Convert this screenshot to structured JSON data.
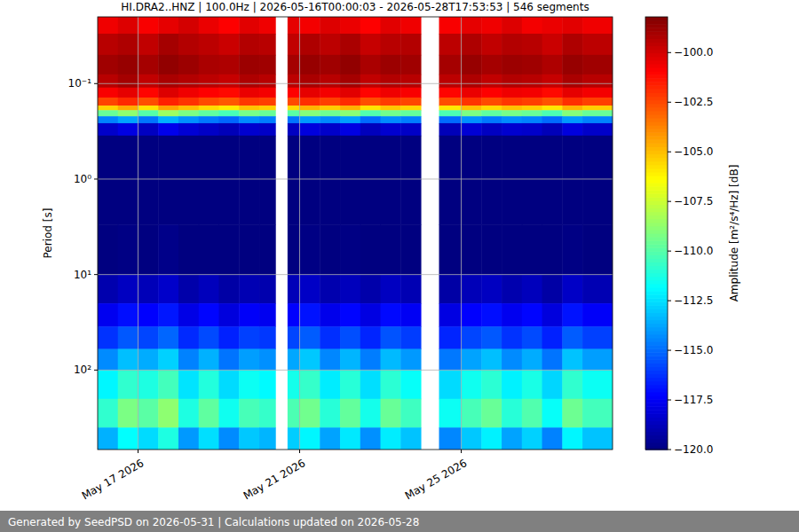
{
  "chart_data": {
    "type": "heatmap",
    "title": "HI.DRA2..HNZ | 100.0Hz | 2026-05-16T00:00:03 - 2026-05-28T17:53:53 | 546 segments",
    "y_label": "Period [s]",
    "colorbar_label": "Amplitude [m²/s⁴/Hz] [dB]",
    "footer": "Generated by SeedPSD on 2026-05-31 | Calculations updated on 2026-05-28",
    "log": "y",
    "grid": true,
    "xlim": [
      "2026-05-16T00:00:03",
      "2026-05-28T17:53:53"
    ],
    "xticks": [
      {
        "value": "2026-05-17T00:00:00",
        "label": "May 17 2026"
      },
      {
        "value": "2026-05-21T00:00:00",
        "label": "May 21 2026"
      },
      {
        "value": "2026-05-25T00:00:00",
        "label": "May 25 2026"
      }
    ],
    "ylim": [
      0.02,
      680
    ],
    "yticks": [
      {
        "value": 0.1,
        "label": "10⁻¹"
      },
      {
        "value": 1,
        "label": "10⁰"
      },
      {
        "value": 10,
        "label": "10¹"
      },
      {
        "value": 100,
        "label": "10²"
      }
    ],
    "x_edges": [
      "2026-05-16T00:00:03",
      "2026-05-16T12:00:00",
      "2026-05-17T00:00:00",
      "2026-05-17T12:00:00",
      "2026-05-18T00:00:00",
      "2026-05-18T12:00:00",
      "2026-05-19T00:00:00",
      "2026-05-19T12:00:00",
      "2026-05-20T00:00:00",
      "2026-05-20T09:36:00",
      "2026-05-20T16:48:00",
      "2026-05-21T00:00:00",
      "2026-05-21T12:00:00",
      "2026-05-22T00:00:00",
      "2026-05-22T12:00:00",
      "2026-05-23T00:00:00",
      "2026-05-23T12:00:00",
      "2026-05-24T00:00:00",
      "2026-05-24T10:48:00",
      "2026-05-25T00:00:00",
      "2026-05-25T12:00:00",
      "2026-05-26T00:00:00",
      "2026-05-26T12:00:00",
      "2026-05-27T00:00:00",
      "2026-05-27T12:00:00",
      "2026-05-28T00:00:00",
      "2026-05-28T17:53:53"
    ],
    "y_edges": [
      0.02,
      0.03,
      0.05,
      0.08,
      0.11,
      0.14,
      0.17,
      0.19,
      0.22,
      0.26,
      0.35,
      1,
      3,
      10,
      20,
      35,
      60,
      100,
      200,
      400,
      680
    ],
    "values": [
      [
        -100.6,
        -100.2,
        -100.8,
        -100.4,
        -100.0,
        -100.5,
        -100.9,
        -100.3,
        -100.6,
        null,
        -100.4,
        -100.7,
        -100.2,
        -100.5,
        -100.9,
        -100.3,
        -100.6,
        null,
        -100.8,
        -100.4,
        -100.6,
        -100.2,
        -100.7,
        -100.5,
        -100.3,
        -100.6
      ],
      [
        -99.4,
        -99.2,
        -99.6,
        -99.0,
        -99.3,
        -99.5,
        -99.8,
        -99.3,
        -99.4,
        null,
        -99.6,
        -99.2,
        -99.5,
        -99.1,
        -99.7,
        -99.4,
        -99.3,
        null,
        -99.5,
        -99.2,
        -99.6,
        -99.3,
        -99.4,
        -99.8,
        -99.2,
        -99.5
      ],
      [
        -98.9,
        -98.7,
        -99.0,
        -98.6,
        -98.8,
        -99.1,
        -99.2,
        -98.8,
        -98.9,
        null,
        -99.0,
        -98.7,
        -98.9,
        -98.6,
        -99.1,
        -98.8,
        -98.9,
        null,
        -99.0,
        -98.7,
        -99.0,
        -98.8,
        -98.9,
        -99.2,
        -98.7,
        -98.9
      ],
      [
        -99.4,
        -99.0,
        -99.6,
        -99.1,
        -99.3,
        -99.5,
        -99.7,
        -99.2,
        -99.4,
        null,
        -99.5,
        -99.1,
        -99.4,
        -99.0,
        -99.6,
        -99.3,
        -99.4,
        null,
        -99.5,
        -99.2,
        -99.6,
        -99.3,
        -99.4,
        -99.7,
        -99.1,
        -99.4
      ],
      [
        -100.8,
        -100.4,
        -101.0,
        -100.2,
        -100.6,
        -100.9,
        -101.1,
        -100.5,
        -100.7,
        null,
        -100.9,
        -100.4,
        -100.7,
        -100.3,
        -101.0,
        -100.6,
        -100.8,
        null,
        -101.0,
        -100.5,
        -100.9,
        -100.6,
        -100.7,
        -101.1,
        -100.4,
        -100.7
      ],
      [
        -102.4,
        -101.8,
        -102.6,
        -101.6,
        -102.0,
        -102.5,
        -102.8,
        -102.1,
        -102.3,
        null,
        -102.5,
        -101.9,
        -102.3,
        -101.8,
        -102.6,
        -102.2,
        -102.4,
        null,
        -102.6,
        -102.0,
        -102.5,
        -102.1,
        -102.3,
        -102.7,
        -101.9,
        -102.3
      ],
      [
        -105.5,
        -104.6,
        -105.8,
        -104.4,
        -105.0,
        -105.6,
        -106.0,
        -105.1,
        -105.4,
        null,
        -105.6,
        -104.8,
        -105.3,
        -104.7,
        -105.8,
        -105.2,
        -105.5,
        null,
        -105.9,
        -105.0,
        -105.6,
        -105.1,
        -105.4,
        -105.9,
        -104.8,
        -105.4
      ],
      [
        -109.6,
        -108.8,
        -110.0,
        -108.5,
        -109.2,
        -109.8,
        -110.3,
        -109.3,
        -109.6,
        null,
        -109.9,
        -109.0,
        -109.5,
        -108.9,
        -110.1,
        -109.4,
        -109.7,
        null,
        -110.2,
        -109.2,
        -109.8,
        -109.3,
        -109.6,
        -110.2,
        -109.0,
        -109.6
      ],
      [
        -114.5,
        -113.8,
        -114.8,
        -113.5,
        -114.2,
        -114.7,
        -115.1,
        -114.3,
        -114.6,
        null,
        -114.8,
        -114.0,
        -114.4,
        -113.9,
        -115.0,
        -114.3,
        -114.6,
        null,
        -115.0,
        -114.2,
        -114.7,
        -114.3,
        -114.5,
        -115.0,
        -114.0,
        -114.5
      ],
      [
        -118.4,
        -117.9,
        -118.6,
        -117.7,
        -118.2,
        -118.5,
        -118.8,
        -118.3,
        -118.5,
        null,
        -118.6,
        -118.0,
        -118.4,
        -117.9,
        -118.7,
        -118.3,
        -118.5,
        null,
        -118.8,
        -118.2,
        -118.6,
        -118.3,
        -118.4,
        -118.8,
        -118.0,
        -118.4
      ],
      [
        -120.4,
        -120.1,
        -120.5,
        -120.0,
        -120.3,
        -120.4,
        -120.6,
        -120.2,
        -120.4,
        null,
        -120.5,
        -120.2,
        -120.3,
        -120.1,
        -120.5,
        -120.3,
        -120.4,
        null,
        -120.6,
        -120.2,
        -120.4,
        -120.3,
        -120.4,
        -120.6,
        -120.1,
        -120.3
      ],
      [
        -121.0,
        -120.8,
        -121.1,
        -120.7,
        -120.9,
        -121.0,
        -121.2,
        -120.9,
        -121.0,
        null,
        -121.1,
        -120.8,
        -121.0,
        -120.8,
        -121.1,
        -120.9,
        -121.0,
        null,
        -121.2,
        -120.9,
        -121.0,
        -120.9,
        -121.0,
        -121.2,
        -120.8,
        -121.0
      ],
      [
        -120.2,
        -119.9,
        -120.3,
        -119.8,
        -120.1,
        -120.2,
        -120.4,
        -120.0,
        -120.2,
        null,
        -120.3,
        -119.9,
        -120.1,
        -119.9,
        -120.3,
        -120.0,
        -120.2,
        null,
        -120.4,
        -120.0,
        -120.2,
        -120.1,
        -120.2,
        -120.4,
        -119.9,
        -120.1
      ],
      [
        -119.0,
        -118.6,
        -118.8,
        -118.4,
        -119.1,
        -118.7,
        -119.2,
        -118.9,
        -119.0,
        null,
        -118.8,
        -118.5,
        -119.0,
        -118.7,
        -119.1,
        -118.6,
        -118.9,
        null,
        -119.2,
        -118.8,
        -118.6,
        -119.0,
        -118.7,
        -119.2,
        -118.5,
        -118.9
      ],
      [
        -117.6,
        -117.0,
        -117.3,
        -116.8,
        -117.8,
        -117.2,
        -118.0,
        -117.4,
        -117.6,
        null,
        -117.3,
        -116.9,
        -117.7,
        -117.2,
        -117.9,
        -117.1,
        -117.5,
        null,
        -117.9,
        -117.3,
        -117.0,
        -117.6,
        -117.2,
        -118.0,
        -116.9,
        -117.4
      ],
      [
        -116.2,
        -115.4,
        -115.8,
        -115.1,
        -116.4,
        -115.7,
        -116.6,
        -115.9,
        -116.1,
        null,
        -115.8,
        -115.3,
        -116.3,
        -115.6,
        -116.5,
        -115.5,
        -116.0,
        null,
        -116.5,
        -115.8,
        -115.4,
        -116.2,
        -115.7,
        -116.6,
        -115.3,
        -115.9
      ],
      [
        -114.3,
        -113.2,
        -113.6,
        -112.8,
        -114.5,
        -113.5,
        -114.8,
        -113.9,
        -114.2,
        null,
        -113.7,
        -113.0,
        -114.4,
        -113.4,
        -114.6,
        -113.3,
        -114.0,
        null,
        -114.7,
        -113.8,
        -113.2,
        -114.3,
        -113.6,
        -114.8,
        -113.1,
        -113.9
      ],
      [
        -112.0,
        -110.8,
        -111.2,
        -110.4,
        -112.4,
        -111.1,
        -112.6,
        -111.6,
        -111.9,
        null,
        -111.4,
        -110.7,
        -112.2,
        -111.0,
        -112.5,
        -110.9,
        -111.7,
        null,
        -112.6,
        -111.5,
        -110.9,
        -112.1,
        -111.3,
        -112.7,
        -110.8,
        -111.6
      ],
      [
        -110.8,
        -109.2,
        -109.9,
        -108.8,
        -111.2,
        -109.8,
        -111.5,
        -110.3,
        -110.7,
        null,
        -110.2,
        -109.4,
        -111.0,
        -109.7,
        -111.4,
        -109.6,
        -110.5,
        null,
        -111.6,
        -110.3,
        -109.6,
        -111.0,
        -110.1,
        -111.7,
        -109.5,
        -110.4
      ],
      [
        -113.5,
        -111.8,
        -112.6,
        -111.2,
        -114.0,
        -112.5,
        -114.3,
        -113.0,
        -113.4,
        null,
        -112.9,
        -112.0,
        -113.8,
        -112.3,
        -114.2,
        -112.2,
        -113.1,
        null,
        -114.4,
        -113.0,
        -112.1,
        -113.8,
        -112.8,
        -114.5,
        -112.0,
        -113.1
      ]
    ],
    "clim": [
      -120,
      -98.2
    ],
    "cticks": [
      {
        "value": -100,
        "label": "−100.0"
      },
      {
        "value": -102.5,
        "label": "−102.5"
      },
      {
        "value": -105,
        "label": "−105.0"
      },
      {
        "value": -107.5,
        "label": "−107.5"
      },
      {
        "value": -110,
        "label": "−110.0"
      },
      {
        "value": -112.5,
        "label": "−112.5"
      },
      {
        "value": -115,
        "label": "−115.0"
      },
      {
        "value": -117.5,
        "label": "−117.5"
      },
      {
        "value": -120,
        "label": "−120.0"
      }
    ]
  }
}
